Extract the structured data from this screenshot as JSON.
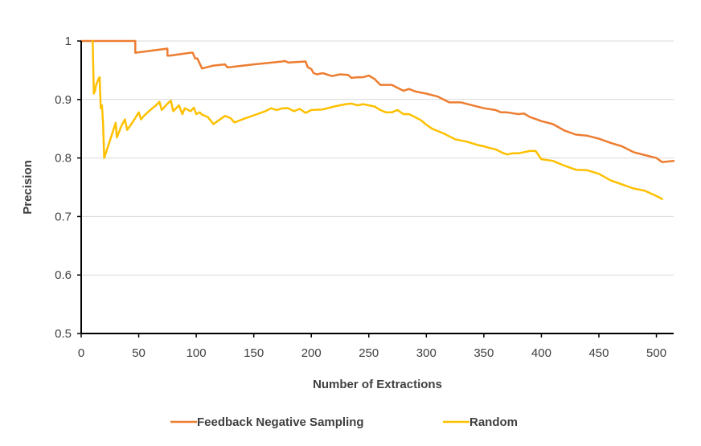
{
  "chart_data": {
    "type": "line",
    "title": "",
    "xlabel": "Number of Extractions",
    "ylabel": "Precision",
    "xlim": [
      0,
      515
    ],
    "ylim": [
      0.5,
      1.0
    ],
    "x_ticks": [
      0,
      50,
      100,
      150,
      200,
      250,
      300,
      350,
      400,
      450,
      500
    ],
    "y_ticks": [
      0.5,
      0.6,
      0.7,
      0.8,
      0.9,
      1.0
    ],
    "x_tick_labels": [
      "0",
      "50",
      "100",
      "150",
      "200",
      "250",
      "300",
      "350",
      "400",
      "450",
      "500"
    ],
    "y_tick_labels": [
      "0.5",
      "0.6",
      "0.7",
      "0.8",
      "0.9",
      "1"
    ],
    "grid": "horizontal",
    "legend_position": "bottom",
    "series": [
      {
        "name": "Feedback Negative Sampling",
        "color": "#ED7D31",
        "x": [
          0,
          47,
          47,
          75,
          75,
          77,
          95,
          97,
          99,
          101,
          105,
          115,
          125,
          127,
          128,
          150,
          175,
          177,
          180,
          195,
          197,
          200,
          202,
          205,
          210,
          218,
          225,
          232,
          235,
          240,
          245,
          250,
          255,
          260,
          263,
          270,
          275,
          280,
          285,
          290,
          295,
          300,
          310,
          320,
          330,
          340,
          350,
          360,
          365,
          370,
          380,
          385,
          390,
          400,
          410,
          420,
          430,
          440,
          450,
          460,
          470,
          480,
          490,
          500,
          505,
          510,
          515
        ],
        "y": [
          1.0,
          1.0,
          0.98,
          0.987,
          0.975,
          0.975,
          0.98,
          0.98,
          0.97,
          0.97,
          0.953,
          0.958,
          0.96,
          0.955,
          0.955,
          0.96,
          0.965,
          0.966,
          0.963,
          0.965,
          0.955,
          0.952,
          0.945,
          0.943,
          0.945,
          0.94,
          0.943,
          0.942,
          0.937,
          0.938,
          0.938,
          0.941,
          0.935,
          0.925,
          0.925,
          0.925,
          0.92,
          0.915,
          0.918,
          0.914,
          0.912,
          0.91,
          0.905,
          0.895,
          0.895,
          0.89,
          0.885,
          0.882,
          0.878,
          0.878,
          0.875,
          0.876,
          0.87,
          0.863,
          0.858,
          0.847,
          0.84,
          0.838,
          0.833,
          0.826,
          0.82,
          0.81,
          0.805,
          0.8,
          0.793,
          0.794,
          0.795
        ]
      },
      {
        "name": "Random",
        "color": "#FFC000",
        "x": [
          10,
          11,
          12,
          13,
          15,
          16,
          17,
          18,
          19,
          20,
          25,
          30,
          31,
          35,
          38,
          40,
          45,
          50,
          52,
          55,
          60,
          65,
          68,
          70,
          75,
          78,
          80,
          85,
          88,
          90,
          95,
          98,
          100,
          103,
          105,
          110,
          115,
          120,
          125,
          130,
          133,
          135,
          140,
          150,
          160,
          165,
          170,
          175,
          180,
          185,
          190,
          195,
          200,
          210,
          220,
          230,
          235,
          240,
          245,
          250,
          255,
          260,
          265,
          270,
          275,
          280,
          285,
          290,
          295,
          300,
          305,
          310,
          315,
          320,
          325,
          330,
          335,
          340,
          345,
          350,
          355,
          360,
          365,
          370,
          375,
          380,
          385,
          390,
          395,
          400,
          410,
          420,
          430,
          440,
          450,
          460,
          470,
          480,
          490,
          500,
          505
        ],
        "y": [
          1.0,
          0.91,
          0.915,
          0.925,
          0.935,
          0.938,
          0.885,
          0.89,
          0.86,
          0.8,
          0.83,
          0.86,
          0.835,
          0.855,
          0.866,
          0.848,
          0.862,
          0.878,
          0.866,
          0.873,
          0.882,
          0.89,
          0.896,
          0.882,
          0.893,
          0.898,
          0.88,
          0.89,
          0.875,
          0.885,
          0.88,
          0.886,
          0.875,
          0.878,
          0.874,
          0.87,
          0.858,
          0.865,
          0.872,
          0.868,
          0.861,
          0.862,
          0.866,
          0.873,
          0.88,
          0.885,
          0.882,
          0.885,
          0.885,
          0.88,
          0.884,
          0.877,
          0.882,
          0.883,
          0.888,
          0.892,
          0.893,
          0.89,
          0.892,
          0.89,
          0.888,
          0.882,
          0.878,
          0.878,
          0.882,
          0.875,
          0.875,
          0.87,
          0.865,
          0.857,
          0.85,
          0.846,
          0.842,
          0.837,
          0.832,
          0.83,
          0.828,
          0.825,
          0.822,
          0.82,
          0.817,
          0.815,
          0.81,
          0.806,
          0.808,
          0.808,
          0.81,
          0.812,
          0.812,
          0.798,
          0.795,
          0.787,
          0.78,
          0.779,
          0.773,
          0.762,
          0.755,
          0.748,
          0.744,
          0.735,
          0.73
        ]
      }
    ]
  }
}
